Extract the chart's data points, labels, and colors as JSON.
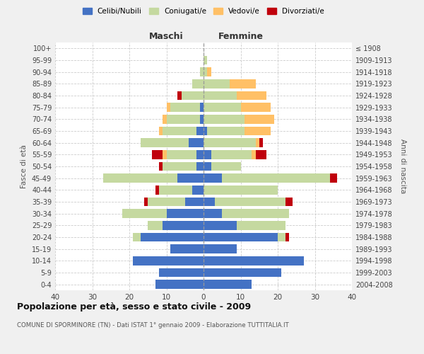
{
  "age_groups": [
    "0-4",
    "5-9",
    "10-14",
    "15-19",
    "20-24",
    "25-29",
    "30-34",
    "35-39",
    "40-44",
    "45-49",
    "50-54",
    "55-59",
    "60-64",
    "65-69",
    "70-74",
    "75-79",
    "80-84",
    "85-89",
    "90-94",
    "95-99",
    "100+"
  ],
  "birth_years": [
    "2004-2008",
    "1999-2003",
    "1994-1998",
    "1989-1993",
    "1984-1988",
    "1979-1983",
    "1974-1978",
    "1969-1973",
    "1964-1968",
    "1959-1963",
    "1954-1958",
    "1949-1953",
    "1944-1948",
    "1939-1943",
    "1934-1938",
    "1929-1933",
    "1924-1928",
    "1919-1923",
    "1914-1918",
    "1909-1913",
    "≤ 1908"
  ],
  "male": {
    "celibi": [
      13,
      12,
      19,
      9,
      17,
      11,
      10,
      5,
      3,
      7,
      2,
      2,
      4,
      2,
      1,
      1,
      0,
      0,
      0,
      0,
      0
    ],
    "coniugati": [
      0,
      0,
      0,
      0,
      2,
      4,
      12,
      10,
      9,
      20,
      9,
      8,
      13,
      9,
      9,
      8,
      6,
      3,
      1,
      0,
      0
    ],
    "vedovi": [
      0,
      0,
      0,
      0,
      0,
      0,
      0,
      0,
      0,
      0,
      0,
      1,
      0,
      1,
      1,
      1,
      0,
      0,
      0,
      0,
      0
    ],
    "divorziati": [
      0,
      0,
      0,
      0,
      0,
      0,
      0,
      1,
      1,
      0,
      1,
      3,
      0,
      0,
      0,
      0,
      1,
      0,
      0,
      0,
      0
    ]
  },
  "female": {
    "nubili": [
      13,
      21,
      27,
      9,
      20,
      9,
      5,
      3,
      0,
      5,
      2,
      2,
      0,
      1,
      0,
      0,
      0,
      0,
      0,
      0,
      0
    ],
    "coniugate": [
      0,
      0,
      0,
      0,
      2,
      13,
      18,
      19,
      20,
      29,
      8,
      11,
      14,
      10,
      11,
      10,
      9,
      7,
      1,
      1,
      0
    ],
    "vedove": [
      0,
      0,
      0,
      0,
      0,
      0,
      0,
      0,
      0,
      0,
      0,
      1,
      1,
      7,
      8,
      8,
      8,
      7,
      1,
      0,
      0
    ],
    "divorziate": [
      0,
      0,
      0,
      0,
      1,
      0,
      0,
      2,
      0,
      2,
      0,
      3,
      1,
      0,
      0,
      0,
      0,
      0,
      0,
      0,
      0
    ]
  },
  "colors": {
    "celibi": "#4472c4",
    "coniugati": "#c5d9a0",
    "vedovi": "#ffc066",
    "divorziati": "#c0000c"
  },
  "xlim": [
    -40,
    40
  ],
  "xticks": [
    -40,
    -30,
    -20,
    -10,
    0,
    10,
    20,
    30,
    40
  ],
  "xticklabels": [
    "40",
    "30",
    "20",
    "10",
    "0",
    "10",
    "20",
    "30",
    "40"
  ],
  "title": "Popolazione per età, sesso e stato civile - 2009",
  "subtitle": "COMUNE DI SPORMINORE (TN) - Dati ISTAT 1° gennaio 2009 - Elaborazione TUTTITALIA.IT",
  "ylabel_left": "Fasce di età",
  "ylabel_right": "Anni di nascita",
  "label_maschi": "Maschi",
  "label_femmine": "Femmine",
  "legend_labels": [
    "Celibi/Nubili",
    "Coniugati/e",
    "Vedovi/e",
    "Divorziati/e"
  ],
  "bg_color": "#f0f0f0",
  "plot_bg_color": "#ffffff"
}
